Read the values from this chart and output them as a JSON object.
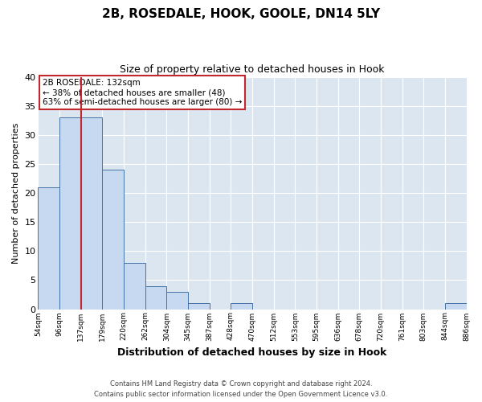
{
  "title": "2B, ROSEDALE, HOOK, GOOLE, DN14 5LY",
  "subtitle": "Size of property relative to detached houses in Hook",
  "xlabel": "Distribution of detached houses by size in Hook",
  "ylabel": "Number of detached properties",
  "bin_labels": [
    "54sqm",
    "96sqm",
    "137sqm",
    "179sqm",
    "220sqm",
    "262sqm",
    "304sqm",
    "345sqm",
    "387sqm",
    "428sqm",
    "470sqm",
    "512sqm",
    "553sqm",
    "595sqm",
    "636sqm",
    "678sqm",
    "720sqm",
    "761sqm",
    "803sqm",
    "844sqm",
    "886sqm"
  ],
  "bar_values": [
    21,
    33,
    33,
    24,
    8,
    4,
    3,
    1,
    0,
    1,
    0,
    0,
    0,
    0,
    0,
    0,
    0,
    0,
    0,
    1
  ],
  "bar_color": "#c6d9f1",
  "bar_edge_color": "#4472a8",
  "vline_color": "#c0282d",
  "vline_position": 2,
  "annotation_text": "2B ROSEDALE: 132sqm\n← 38% of detached houses are smaller (48)\n63% of semi-detached houses are larger (80) →",
  "annotation_box_edge_color": "#c0282d",
  "annotation_box_face_color": "#ffffff",
  "ylim": [
    0,
    40
  ],
  "yticks": [
    0,
    5,
    10,
    15,
    20,
    25,
    30,
    35,
    40
  ],
  "grid_color": "#dce6f1",
  "plot_bg_color": "#dce6f1",
  "fig_bg_color": "#ffffff",
  "footer_line1": "Contains HM Land Registry data © Crown copyright and database right 2024.",
  "footer_line2": "Contains public sector information licensed under the Open Government Licence v3.0."
}
